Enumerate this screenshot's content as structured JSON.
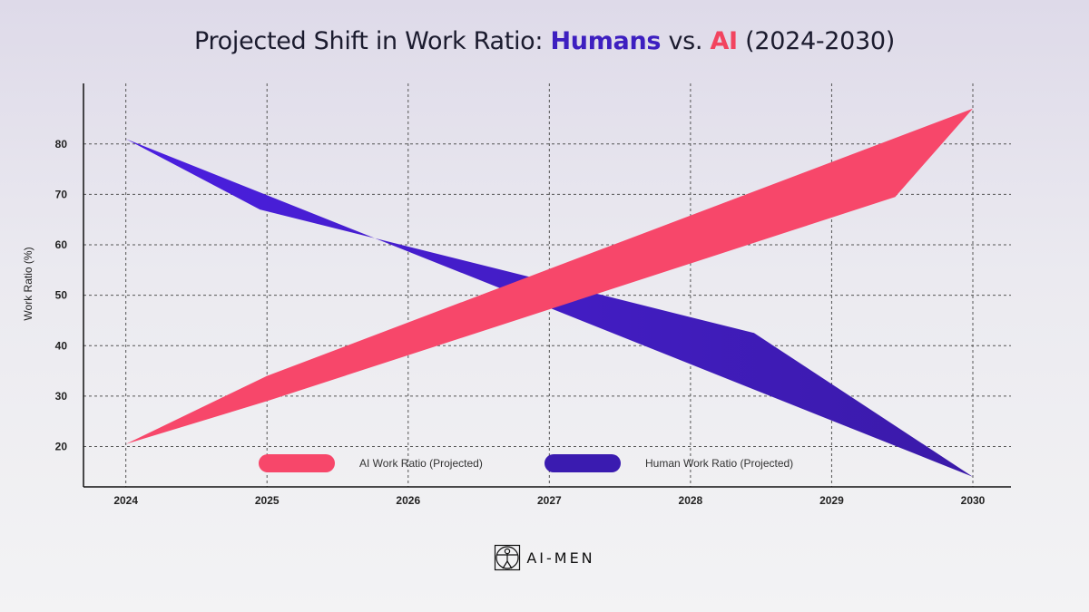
{
  "title": {
    "prefix": "Projected Shift in Work Ratio: ",
    "humans": "Humans",
    "vs": " vs. ",
    "ai": "AI",
    "suffix": " (2024-2030)"
  },
  "colors": {
    "ai": "#f7476a",
    "human": "#4a1fd9",
    "human_dark": "#3a1bb0"
  },
  "chart_data": {
    "type": "area",
    "title": "Projected Shift in Work Ratio: Humans vs. AI (2024-2030)",
    "xlabel": "",
    "ylabel": "Work Ratio (%)",
    "x": [
      2024,
      2025,
      2026,
      2027,
      2028,
      2029,
      2030
    ],
    "xlim": [
      2023.7,
      2030.27
    ],
    "ylim": [
      12,
      92
    ],
    "yticks": [
      20,
      30,
      40,
      50,
      60,
      70,
      80
    ],
    "grid": true,
    "series": [
      {
        "name": "AI Work Ratio (Projected)",
        "upper": [
          [
            2024,
            20.5
          ],
          [
            2030,
            87
          ]
        ],
        "lower": [
          [
            2024,
            20.5
          ],
          [
            2029.45,
            69.5
          ],
          [
            2030,
            87
          ]
        ],
        "band_knee": [
          2025,
          34
        ],
        "band_lower_knee": [
          2025,
          29
        ]
      },
      {
        "name": "Human Work Ratio (Projected)",
        "upper": [
          [
            2024,
            81
          ],
          [
            2028.45,
            42.5
          ],
          [
            2030,
            14
          ]
        ],
        "lower": [
          [
            2024,
            81
          ],
          [
            2030,
            14
          ]
        ],
        "band_knee": [
          2024.95,
          67
        ]
      }
    ],
    "legend": [
      {
        "label": "AI Work Ratio (Projected)",
        "color": "#f7476a"
      },
      {
        "label": "Human Work Ratio (Projected)",
        "color": "#3a1bb0"
      }
    ],
    "legend_position": "bottom-center"
  },
  "logo": {
    "text": "AI-MEN",
    "icon": "vitruvian-man-icon"
  }
}
